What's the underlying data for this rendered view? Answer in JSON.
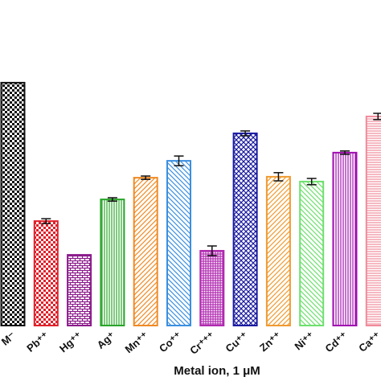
{
  "chart_data": {
    "type": "bar",
    "x_label": "Metal ion, 1 μM",
    "categories": [
      "M⁻",
      "Pb⁺⁺",
      "Hg⁺⁺",
      "Ag⁺",
      "Mn⁺⁺",
      "Co⁺⁺",
      "Cr⁺⁺⁺",
      "Cu⁺⁺",
      "Zn⁺⁺",
      "Ni⁺⁺",
      "Cd⁺⁺",
      "Ca⁺⁺"
    ],
    "values": [
      100.7,
      43.3,
      29.3,
      52.3,
      61.3,
      68.3,
      31,
      79.7,
      61.7,
      59.7,
      71.7,
      86.7
    ],
    "errors": [
      null,
      1,
      null,
      0.7,
      0.7,
      2,
      2,
      1,
      1.7,
      1.3,
      0.7,
      1.3
    ],
    "colors": [
      "#111111",
      "#e0202a",
      "#8b1a8b",
      "#2aa52a",
      "#f08a24",
      "#3a8fe0",
      "#b02ab0",
      "#1a1aa0",
      "#f09a30",
      "#6de06d",
      "#a010b0",
      "#f08a9a"
    ],
    "ylim": [
      0,
      110
    ]
  }
}
